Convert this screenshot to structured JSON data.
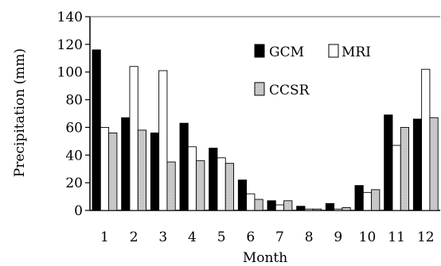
{
  "chart_data": {
    "type": "bar",
    "title": "",
    "xlabel": "Month",
    "ylabel": "Precipitation (mm)",
    "ylim": [
      0,
      140
    ],
    "yticks": [
      0,
      20,
      40,
      60,
      80,
      100,
      120,
      140
    ],
    "categories": [
      "1",
      "2",
      "3",
      "4",
      "5",
      "6",
      "7",
      "8",
      "9",
      "10",
      "11",
      "12"
    ],
    "series": [
      {
        "name": "GCM",
        "color": "#000000",
        "fill_style": "solid-black",
        "values": [
          116,
          67,
          56,
          63,
          45,
          22,
          7,
          3,
          5,
          18,
          69,
          66
        ]
      },
      {
        "name": "MRI",
        "color": "#ffffff",
        "fill_style": "white",
        "values": [
          60,
          104,
          101,
          46,
          38,
          12,
          4,
          1,
          1,
          13,
          47,
          102
        ]
      },
      {
        "name": "CCSR",
        "color": "#c8c8c8",
        "fill_style": "light-gray-hatched",
        "values": [
          56,
          58,
          35,
          36,
          34,
          8,
          7,
          1,
          2,
          15,
          60,
          67
        ]
      }
    ],
    "grid": false,
    "legend_position": "top-right"
  }
}
